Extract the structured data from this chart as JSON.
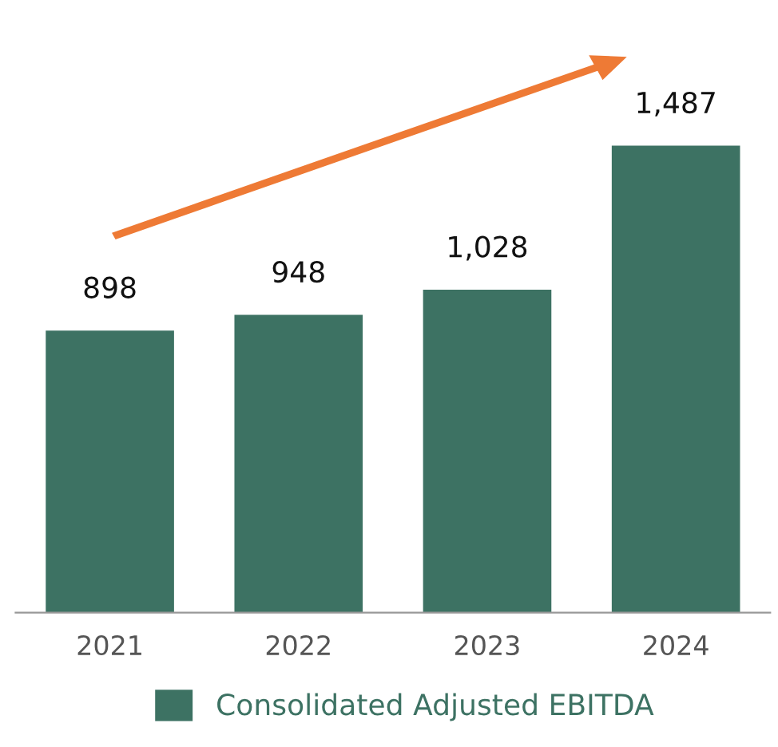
{
  "chart_data": {
    "type": "bar",
    "categories": [
      "2021",
      "2022",
      "2023",
      "2024"
    ],
    "series": [
      {
        "name": "Consolidated Adjusted EBITDA",
        "color": "#3d7263",
        "values": [
          898,
          948,
          1028,
          1487
        ],
        "value_labels": [
          "898",
          "948",
          "1,028",
          "1,487"
        ]
      }
    ],
    "legend": "bottom",
    "grid": false
  }
}
